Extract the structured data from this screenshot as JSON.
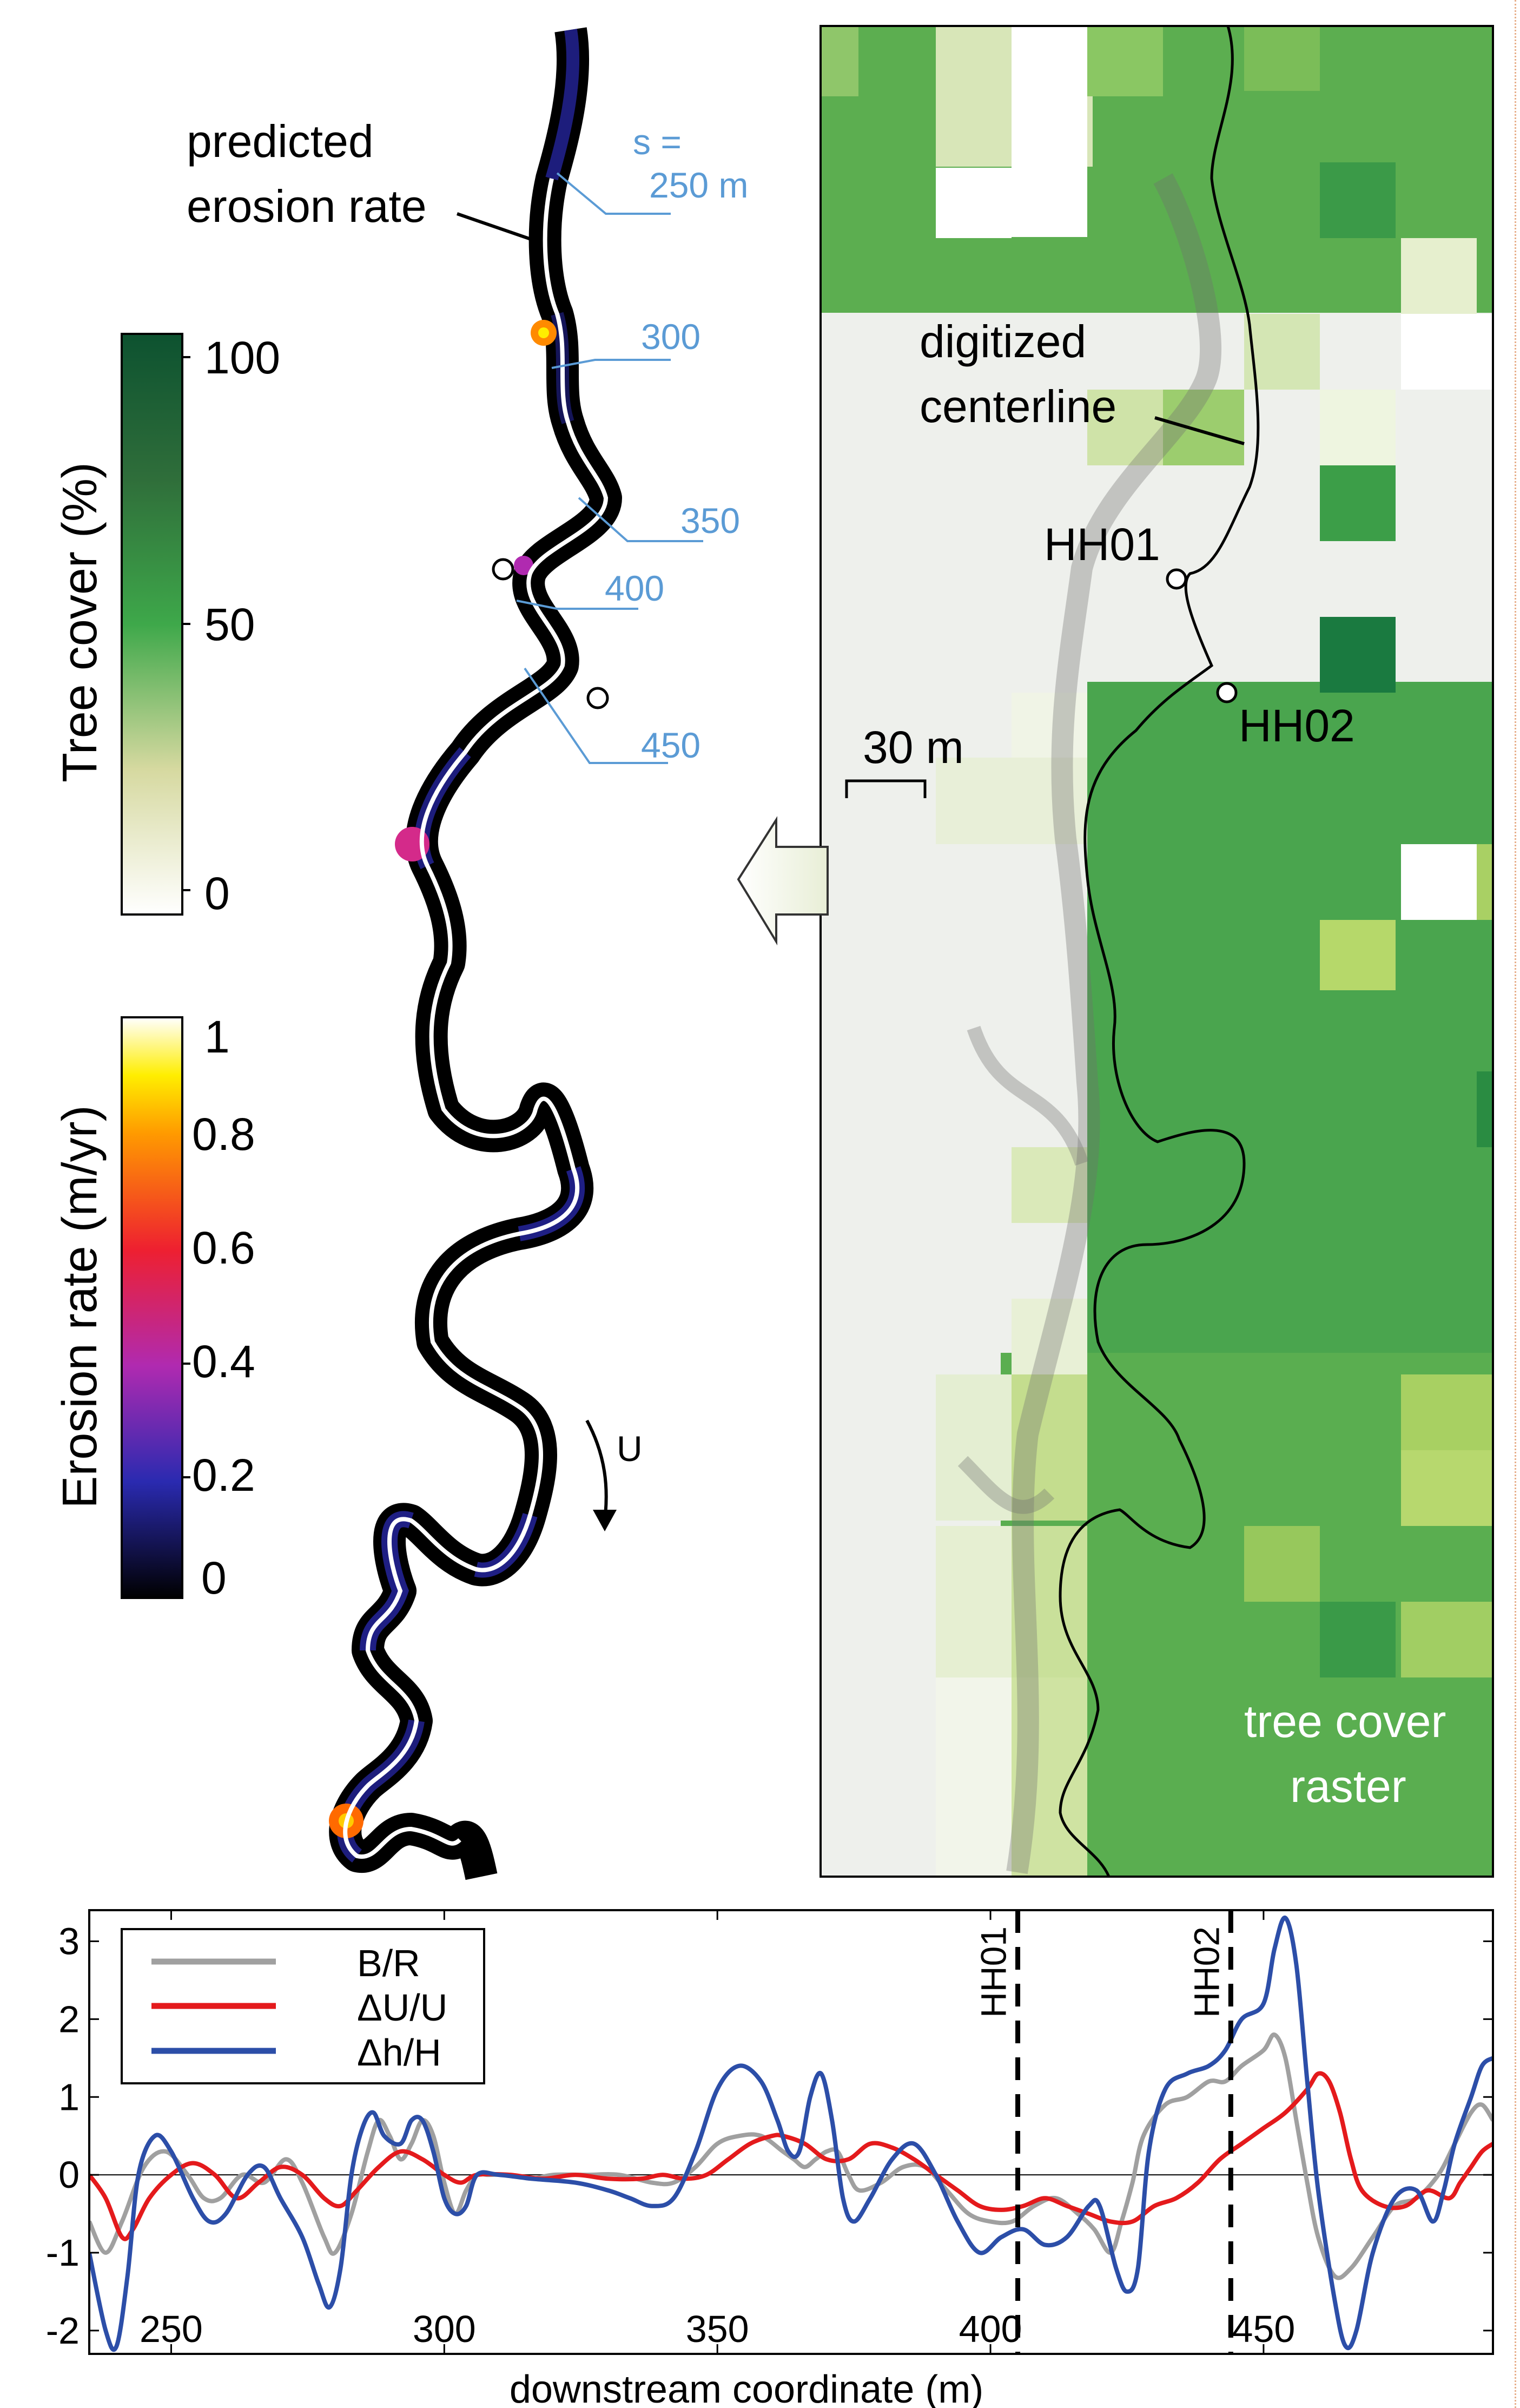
{
  "colors": {
    "br_series": "#a0a0a0",
    "du_series": "#e41a1c",
    "dh_series": "#2c4ea8",
    "s_label": "#5b9bd5",
    "river_outline": "#000000",
    "river_core": "#ffffff"
  },
  "map": {
    "predicted_label_line1": "predicted",
    "predicted_label_line2": "erosion rate",
    "digitized_label_line1": "digitized",
    "digitized_label_line2": "centerline",
    "tree_label_line1": "tree cover",
    "tree_label_line2": "raster",
    "scale_label": "30 m",
    "flow_label": "U",
    "site1": "HH01",
    "site2": "HH02",
    "s_prefix": "s =",
    "s_labels": [
      "250 m",
      "300",
      "350",
      "400",
      "450"
    ]
  },
  "tree_colorbar": {
    "label": "Tree cover (%)",
    "ticks": [
      "100",
      "50",
      "0"
    ]
  },
  "erosion_colorbar": {
    "label": "Erosion rate (m/yr)",
    "ticks": [
      "1",
      "0.8",
      "0.6",
      "0.4",
      "0.2",
      "0"
    ]
  },
  "chart_data": {
    "type": "line",
    "xlabel": "downstream coordinate (m)",
    "ylabel": "",
    "xlim": [
      235,
      492
    ],
    "ylim": [
      -2.3,
      3.4
    ],
    "xticks": [
      250,
      300,
      350,
      400,
      450
    ],
    "yticks": [
      3,
      2,
      1,
      0,
      -1,
      -2
    ],
    "grid": false,
    "legend_position": "top-left",
    "vlines": [
      {
        "label": "HH01",
        "x": 405
      },
      {
        "label": "HH02",
        "x": 444
      }
    ],
    "series": [
      {
        "name": "B/R",
        "color": "#a0a0a0",
        "points": [
          [
            235,
            -0.6
          ],
          [
            238,
            -1.0
          ],
          [
            241,
            -0.6
          ],
          [
            245,
            0.1
          ],
          [
            249,
            0.3
          ],
          [
            253,
            0.0
          ],
          [
            256,
            -0.3
          ],
          [
            259,
            -0.3
          ],
          [
            263,
            0.0
          ],
          [
            267,
            -0.1
          ],
          [
            271,
            0.2
          ],
          [
            274,
            -0.1
          ],
          [
            278,
            -0.8
          ],
          [
            280,
            -1.0
          ],
          [
            283,
            -0.5
          ],
          [
            286,
            0.3
          ],
          [
            288,
            0.7
          ],
          [
            290,
            0.5
          ],
          [
            292,
            0.2
          ],
          [
            294,
            0.4
          ],
          [
            296,
            0.7
          ],
          [
            298,
            0.5
          ],
          [
            300,
            -0.1
          ],
          [
            302,
            -0.5
          ],
          [
            304,
            -0.2
          ],
          [
            306,
            0.0
          ],
          [
            308,
            0.0
          ],
          [
            312,
            0.0
          ],
          [
            316,
            -0.05
          ],
          [
            320,
            0.0
          ],
          [
            326,
            0.0
          ],
          [
            332,
            0.0
          ],
          [
            338,
            -0.1
          ],
          [
            342,
            -0.1
          ],
          [
            346,
            0.1
          ],
          [
            350,
            0.4
          ],
          [
            354,
            0.5
          ],
          [
            358,
            0.5
          ],
          [
            362,
            0.3
          ],
          [
            364,
            0.2
          ],
          [
            366,
            0.1
          ],
          [
            368,
            0.2
          ],
          [
            370,
            0.3
          ],
          [
            372,
            0.3
          ],
          [
            374,
            0.0
          ],
          [
            376,
            -0.2
          ],
          [
            380,
            -0.1
          ],
          [
            384,
            0.1
          ],
          [
            388,
            0.1
          ],
          [
            392,
            -0.2
          ],
          [
            396,
            -0.5
          ],
          [
            400,
            -0.6
          ],
          [
            404,
            -0.6
          ],
          [
            408,
            -0.4
          ],
          [
            412,
            -0.3
          ],
          [
            416,
            -0.5
          ],
          [
            419,
            -0.7
          ],
          [
            422,
            -1.0
          ],
          [
            424,
            -0.6
          ],
          [
            426,
            -0.1
          ],
          [
            428,
            0.5
          ],
          [
            432,
            0.9
          ],
          [
            436,
            1.0
          ],
          [
            440,
            1.2
          ],
          [
            443,
            1.2
          ],
          [
            446,
            1.4
          ],
          [
            450,
            1.6
          ],
          [
            452,
            1.8
          ],
          [
            454,
            1.5
          ],
          [
            456,
            0.7
          ],
          [
            458,
            -0.1
          ],
          [
            460,
            -0.8
          ],
          [
            463,
            -1.3
          ],
          [
            466,
            -1.2
          ],
          [
            470,
            -0.8
          ],
          [
            474,
            -0.4
          ],
          [
            478,
            -0.3
          ],
          [
            482,
            0.0
          ],
          [
            485,
            0.4
          ],
          [
            488,
            0.8
          ],
          [
            490,
            0.9
          ],
          [
            492,
            0.7
          ]
        ]
      },
      {
        "name": "ΔU/U",
        "color": "#e41a1c",
        "points": [
          [
            235,
            0.0
          ],
          [
            238,
            -0.3
          ],
          [
            241,
            -0.8
          ],
          [
            243,
            -0.7
          ],
          [
            246,
            -0.3
          ],
          [
            250,
            0.0
          ],
          [
            254,
            0.15
          ],
          [
            258,
            0.0
          ],
          [
            262,
            -0.3
          ],
          [
            266,
            -0.1
          ],
          [
            270,
            0.1
          ],
          [
            274,
            0.0
          ],
          [
            278,
            -0.3
          ],
          [
            281,
            -0.4
          ],
          [
            284,
            -0.2
          ],
          [
            288,
            0.1
          ],
          [
            292,
            0.3
          ],
          [
            296,
            0.2
          ],
          [
            300,
            0.0
          ],
          [
            303,
            -0.1
          ],
          [
            306,
            0.0
          ],
          [
            312,
            0.0
          ],
          [
            318,
            -0.05
          ],
          [
            324,
            0.0
          ],
          [
            330,
            -0.05
          ],
          [
            336,
            -0.05
          ],
          [
            340,
            0.0
          ],
          [
            344,
            -0.05
          ],
          [
            348,
            0.0
          ],
          [
            352,
            0.2
          ],
          [
            356,
            0.4
          ],
          [
            360,
            0.5
          ],
          [
            362,
            0.5
          ],
          [
            366,
            0.4
          ],
          [
            370,
            0.2
          ],
          [
            374,
            0.2
          ],
          [
            378,
            0.4
          ],
          [
            382,
            0.35
          ],
          [
            386,
            0.2
          ],
          [
            390,
            0.0
          ],
          [
            394,
            -0.2
          ],
          [
            398,
            -0.4
          ],
          [
            402,
            -0.45
          ],
          [
            406,
            -0.4
          ],
          [
            410,
            -0.3
          ],
          [
            414,
            -0.4
          ],
          [
            418,
            -0.5
          ],
          [
            422,
            -0.6
          ],
          [
            426,
            -0.6
          ],
          [
            430,
            -0.4
          ],
          [
            434,
            -0.3
          ],
          [
            438,
            -0.1
          ],
          [
            442,
            0.2
          ],
          [
            446,
            0.4
          ],
          [
            450,
            0.6
          ],
          [
            454,
            0.8
          ],
          [
            458,
            1.1
          ],
          [
            460,
            1.3
          ],
          [
            462,
            1.2
          ],
          [
            464,
            0.8
          ],
          [
            466,
            0.2
          ],
          [
            468,
            -0.2
          ],
          [
            472,
            -0.4
          ],
          [
            476,
            -0.4
          ],
          [
            480,
            -0.2
          ],
          [
            484,
            -0.3
          ],
          [
            486,
            -0.1
          ],
          [
            488,
            0.1
          ],
          [
            490,
            0.3
          ],
          [
            492,
            0.4
          ]
        ]
      },
      {
        "name": "Δh/H",
        "color": "#2c4ea8",
        "points": [
          [
            235,
            -1.0
          ],
          [
            238,
            -2.0
          ],
          [
            240,
            -2.2
          ],
          [
            242,
            -1.3
          ],
          [
            244,
            0.0
          ],
          [
            247,
            0.5
          ],
          [
            250,
            0.3
          ],
          [
            254,
            -0.3
          ],
          [
            257,
            -0.6
          ],
          [
            260,
            -0.5
          ],
          [
            264,
            0.0
          ],
          [
            267,
            0.1
          ],
          [
            270,
            -0.3
          ],
          [
            274,
            -0.8
          ],
          [
            277,
            -1.4
          ],
          [
            279,
            -1.7
          ],
          [
            281,
            -1.2
          ],
          [
            283,
            0.0
          ],
          [
            285,
            0.6
          ],
          [
            287,
            0.8
          ],
          [
            289,
            0.5
          ],
          [
            292,
            0.4
          ],
          [
            294,
            0.7
          ],
          [
            296,
            0.7
          ],
          [
            298,
            0.3
          ],
          [
            300,
            -0.3
          ],
          [
            302,
            -0.5
          ],
          [
            304,
            -0.4
          ],
          [
            306,
            0.0
          ],
          [
            310,
            0.0
          ],
          [
            316,
            -0.05
          ],
          [
            324,
            -0.1
          ],
          [
            330,
            -0.2
          ],
          [
            334,
            -0.3
          ],
          [
            338,
            -0.4
          ],
          [
            342,
            -0.3
          ],
          [
            346,
            0.3
          ],
          [
            350,
            1.1
          ],
          [
            354,
            1.4
          ],
          [
            358,
            1.2
          ],
          [
            361,
            0.7
          ],
          [
            363,
            0.3
          ],
          [
            365,
            0.3
          ],
          [
            367,
            1.0
          ],
          [
            369,
            1.3
          ],
          [
            371,
            0.7
          ],
          [
            373,
            -0.3
          ],
          [
            375,
            -0.6
          ],
          [
            378,
            -0.3
          ],
          [
            382,
            0.2
          ],
          [
            386,
            0.4
          ],
          [
            390,
            0.0
          ],
          [
            394,
            -0.6
          ],
          [
            398,
            -1.0
          ],
          [
            402,
            -0.8
          ],
          [
            406,
            -0.7
          ],
          [
            410,
            -0.9
          ],
          [
            414,
            -0.8
          ],
          [
            418,
            -0.4
          ],
          [
            420,
            -0.4
          ],
          [
            423,
            -1.2
          ],
          [
            425,
            -1.5
          ],
          [
            427,
            -1.2
          ],
          [
            429,
            0.3
          ],
          [
            432,
            1.1
          ],
          [
            436,
            1.3
          ],
          [
            440,
            1.4
          ],
          [
            443,
            1.6
          ],
          [
            446,
            2.0
          ],
          [
            450,
            2.2
          ],
          [
            452,
            2.9
          ],
          [
            454,
            3.3
          ],
          [
            456,
            2.7
          ],
          [
            458,
            1.2
          ],
          [
            460,
            -0.2
          ],
          [
            463,
            -1.6
          ],
          [
            465,
            -2.2
          ],
          [
            467,
            -2.0
          ],
          [
            470,
            -1.0
          ],
          [
            474,
            -0.3
          ],
          [
            478,
            -0.2
          ],
          [
            481,
            -0.6
          ],
          [
            483,
            -0.2
          ],
          [
            485,
            0.4
          ],
          [
            488,
            1.0
          ],
          [
            490,
            1.4
          ],
          [
            492,
            1.5
          ]
        ]
      }
    ]
  }
}
